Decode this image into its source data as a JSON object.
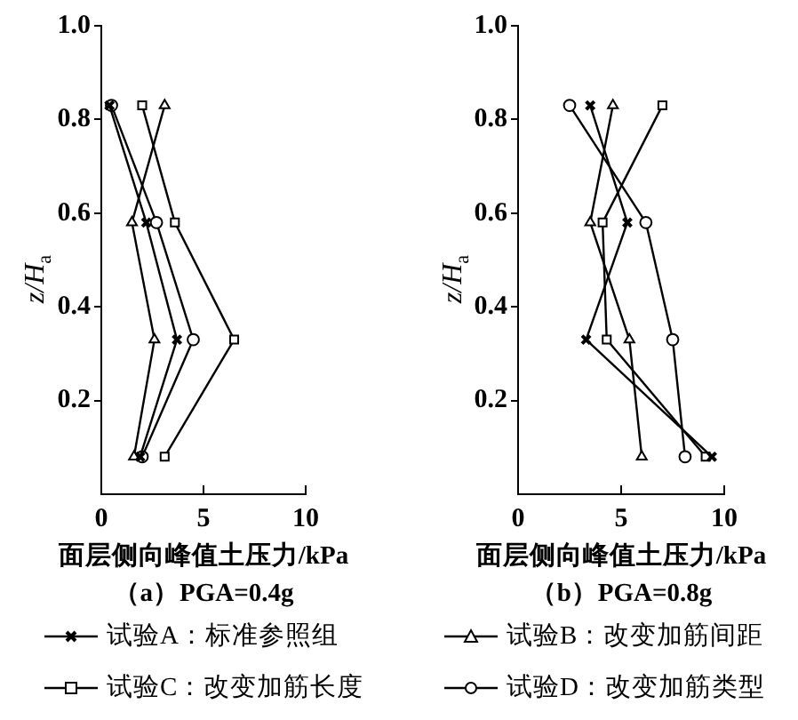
{
  "chart_data": [
    {
      "type": "line",
      "title": "（a）PGA=0.4g",
      "xlabel": "面层侧向峰值土压力/kPa",
      "ylabel": "z/H$_{a}$",
      "xlim": [
        0,
        10
      ],
      "xticks": [
        0,
        5,
        10
      ],
      "ylim": [
        0,
        1
      ],
      "yticks": [
        0.2,
        0.4,
        0.6,
        0.8,
        {
          "value": 1,
          "label": "1.0"
        }
      ],
      "legend": "bottom",
      "series": [
        {
          "name": "试验A：标准参照组",
          "color": "#000000",
          "marker": "cross",
          "x": [
            0.4,
            2.2,
            3.7,
            1.9
          ],
          "values": [
            0.83,
            0.58,
            0.33,
            0.08
          ]
        },
        {
          "name": "试验B：改变加筋间距",
          "color": "#000000",
          "marker": "triangle",
          "x": [
            3.1,
            1.5,
            2.6,
            1.6
          ],
          "values": [
            0.83,
            0.58,
            0.33,
            0.08
          ]
        },
        {
          "name": "试验C：改变加筋长度",
          "color": "#000000",
          "marker": "square",
          "x": [
            2.0,
            3.6,
            6.5,
            3.1
          ],
          "values": [
            0.83,
            0.58,
            0.33,
            0.08
          ]
        },
        {
          "name": "试验D：改变加筋类型",
          "color": "#000000",
          "marker": "circle",
          "x": [
            0.5,
            2.7,
            4.5,
            2.0
          ],
          "values": [
            0.83,
            0.58,
            0.33,
            0.08
          ]
        }
      ]
    },
    {
      "type": "line",
      "title": "（b）PGA=0.8g",
      "xlabel": "面层侧向峰值土压力/kPa",
      "ylabel": "z/H$_{a}$",
      "xlim": [
        0,
        10
      ],
      "xticks": [
        0,
        5,
        10
      ],
      "ylim": [
        0,
        1
      ],
      "yticks": [
        0.2,
        0.4,
        0.6,
        0.8,
        {
          "value": 1,
          "label": "1.0"
        }
      ],
      "legend": "bottom",
      "series": [
        {
          "name": "试验A：标准参照组",
          "color": "#000000",
          "marker": "cross",
          "x": [
            3.5,
            5.3,
            3.3,
            9.4
          ],
          "values": [
            0.83,
            0.58,
            0.33,
            0.08
          ]
        },
        {
          "name": "试验B：改变加筋间距",
          "color": "#000000",
          "marker": "triangle",
          "x": [
            4.6,
            3.5,
            5.4,
            6.0
          ],
          "values": [
            0.83,
            0.58,
            0.33,
            0.08
          ]
        },
        {
          "name": "试验C：改变加筋长度",
          "color": "#000000",
          "marker": "square",
          "x": [
            7.0,
            4.1,
            4.3,
            9.1
          ],
          "values": [
            0.83,
            0.58,
            0.33,
            0.08
          ]
        },
        {
          "name": "试验D：改变加筋类型",
          "color": "#000000",
          "marker": "circle",
          "x": [
            2.5,
            6.2,
            7.5,
            8.1
          ],
          "values": [
            0.83,
            0.58,
            0.33,
            0.08
          ]
        }
      ]
    }
  ]
}
